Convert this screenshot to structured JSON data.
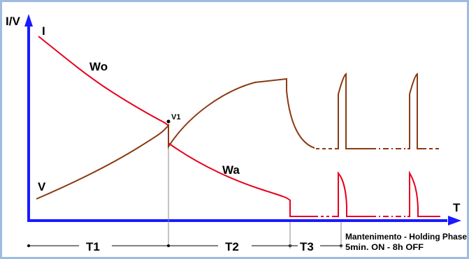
{
  "chart_data": {
    "type": "line",
    "title": "",
    "ylabel": "I/V",
    "xlabel": "T",
    "grid": false,
    "colors": {
      "axis": "#1a1aff",
      "current": "#e8001c",
      "voltage": "#8b3a12",
      "frame": "#9fbbe0"
    },
    "curve_labels": {
      "current": "I",
      "voltage": "V",
      "wo": "Wo",
      "wa": "Wa",
      "v1": "V1"
    },
    "phases": [
      {
        "label": "T1"
      },
      {
        "label": "T2"
      },
      {
        "label": "T3"
      }
    ],
    "holding_phase": {
      "title": "Mantenimento - Holding Phase",
      "timing": "5min. ON - 8h OFF"
    }
  }
}
